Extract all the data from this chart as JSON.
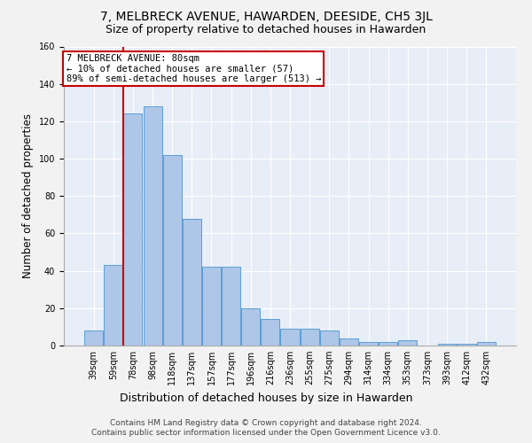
{
  "title": "7, MELBRECK AVENUE, HAWARDEN, DEESIDE, CH5 3JL",
  "subtitle": "Size of property relative to detached houses in Hawarden",
  "xlabel_bottom": "Distribution of detached houses by size in Hawarden",
  "ylabel": "Number of detached properties",
  "categories": [
    "39sqm",
    "59sqm",
    "78sqm",
    "98sqm",
    "118sqm",
    "137sqm",
    "157sqm",
    "177sqm",
    "196sqm",
    "216sqm",
    "236sqm",
    "255sqm",
    "275sqm",
    "294sqm",
    "314sqm",
    "334sqm",
    "353sqm",
    "373sqm",
    "393sqm",
    "412sqm",
    "432sqm"
  ],
  "values": [
    8,
    43,
    124,
    128,
    102,
    68,
    42,
    42,
    20,
    14,
    9,
    9,
    8,
    4,
    2,
    2,
    3,
    0,
    1,
    1,
    2
  ],
  "bar_color": "#aec6e8",
  "bar_edge_color": "#5a9fd4",
  "annotation_line1": "7 MELBRECK AVENUE: 80sqm",
  "annotation_line2": "← 10% of detached houses are smaller (57)",
  "annotation_line3": "89% of semi-detached houses are larger (513) →",
  "annotation_box_color": "#ffffff",
  "annotation_box_edge": "#cc0000",
  "redline_color": "#cc0000",
  "ylim": [
    0,
    160
  ],
  "yticks": [
    0,
    20,
    40,
    60,
    80,
    100,
    120,
    140,
    160
  ],
  "footer1": "Contains HM Land Registry data © Crown copyright and database right 2024.",
  "footer2": "Contains public sector information licensed under the Open Government Licence v3.0.",
  "background_color": "#e8eef7",
  "fig_background_color": "#f2f2f2",
  "grid_color": "#ffffff",
  "title_fontsize": 10,
  "subtitle_fontsize": 9,
  "tick_fontsize": 7,
  "ylabel_fontsize": 8.5,
  "xlabel_fontsize": 9,
  "footer_fontsize": 6.5,
  "annotation_fontsize": 7.5
}
